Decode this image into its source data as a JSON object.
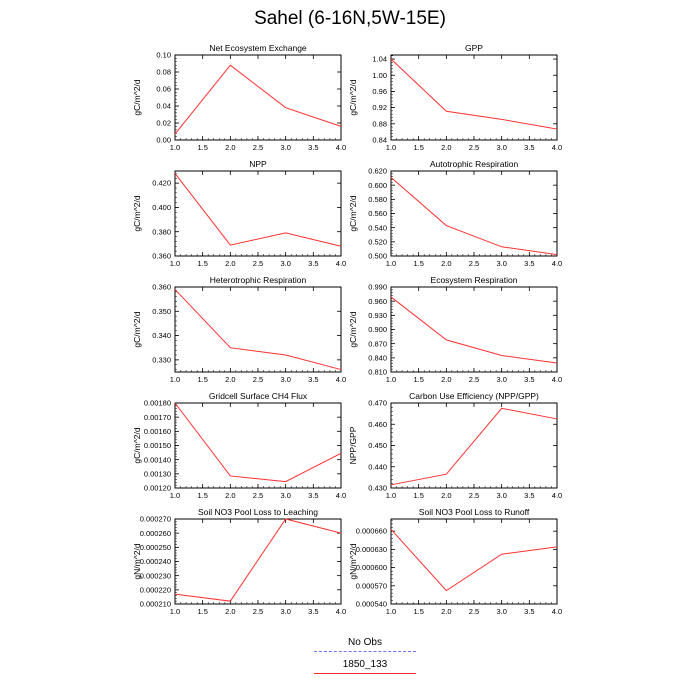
{
  "title": "Sahel (6-16N,5W-15E)",
  "legend": {
    "entries": [
      {
        "label": "No Obs",
        "color": "#7070ff",
        "style": "dashed"
      },
      {
        "label": "1850_133",
        "color": "#ff3030",
        "style": "solid"
      }
    ]
  },
  "chart_data": [
    {
      "type": "line",
      "title": "Net Ecosystem Exchange",
      "ylabel": "gC/m^2/d",
      "x": [
        1,
        2,
        3,
        4
      ],
      "series": [
        {
          "values": [
            0.007,
            0.088,
            0.038,
            0.016
          ],
          "color": "#ff3030"
        }
      ],
      "xlim": [
        1,
        4
      ],
      "ylim": [
        0,
        0.1
      ],
      "xticks": [
        "1.0",
        "1.5",
        "2.0",
        "2.5",
        "3.0",
        "3.5",
        "4.0"
      ],
      "yticks": [
        "0.00",
        "0.02",
        "0.04",
        "0.06",
        "0.08",
        "0.10"
      ],
      "grid": false
    },
    {
      "type": "line",
      "title": "GPP",
      "ylabel": "gC/m^2/d",
      "x": [
        1,
        2,
        3,
        4
      ],
      "series": [
        {
          "values": [
            1.04,
            0.911,
            0.891,
            0.867
          ],
          "color": "#ff3030"
        }
      ],
      "xlim": [
        1,
        4
      ],
      "ylim": [
        0.84,
        1.05
      ],
      "xticks": [
        "1.0",
        "1.5",
        "2.0",
        "2.5",
        "3.0",
        "3.5",
        "4.0"
      ],
      "yticks": [
        "0.84",
        "0.88",
        "0.92",
        "0.96",
        "1.00",
        "1.04"
      ],
      "grid": false
    },
    {
      "type": "line",
      "title": "NPP",
      "ylabel": "gC/m^2/d",
      "x": [
        1,
        2,
        3,
        4
      ],
      "series": [
        {
          "values": [
            0.428,
            0.369,
            0.379,
            0.368
          ],
          "color": "#ff3030"
        }
      ],
      "xlim": [
        1,
        4
      ],
      "ylim": [
        0.36,
        0.43
      ],
      "xticks": [
        "1.0",
        "1.5",
        "2.0",
        "2.5",
        "3.0",
        "3.5",
        "4.0"
      ],
      "yticks": [
        "0.360",
        "0.380",
        "0.400",
        "0.420"
      ],
      "grid": false
    },
    {
      "type": "line",
      "title": "Autotrophic Respiration",
      "ylabel": "gC/m^2/d",
      "x": [
        1,
        2,
        3,
        4
      ],
      "series": [
        {
          "values": [
            0.611,
            0.543,
            0.513,
            0.502
          ],
          "color": "#ff3030"
        }
      ],
      "xlim": [
        1,
        4
      ],
      "ylim": [
        0.5,
        0.62
      ],
      "xticks": [
        "1.0",
        "1.5",
        "2.0",
        "2.5",
        "3.0",
        "3.5",
        "4.0"
      ],
      "yticks": [
        "0.500",
        "0.520",
        "0.540",
        "0.560",
        "0.580",
        "0.600",
        "0.620"
      ],
      "grid": false
    },
    {
      "type": "line",
      "title": "Heterotrophic Respiration",
      "ylabel": "gC/m^2/d",
      "x": [
        1,
        2,
        3,
        4
      ],
      "series": [
        {
          "values": [
            0.359,
            0.335,
            0.332,
            0.326
          ],
          "color": "#ff3030"
        }
      ],
      "xlim": [
        1,
        4
      ],
      "ylim": [
        0.325,
        0.36
      ],
      "xticks": [
        "1.0",
        "1.5",
        "2.0",
        "2.5",
        "3.0",
        "3.5",
        "4.0"
      ],
      "yticks": [
        "0.330",
        "0.340",
        "0.350",
        "0.360"
      ],
      "grid": false
    },
    {
      "type": "line",
      "title": "Ecosystem Respiration",
      "ylabel": "gC/m^2/d",
      "x": [
        1,
        2,
        3,
        4
      ],
      "series": [
        {
          "values": [
            0.969,
            0.878,
            0.845,
            0.829
          ],
          "color": "#ff3030"
        }
      ],
      "xlim": [
        1,
        4
      ],
      "ylim": [
        0.81,
        0.99
      ],
      "xticks": [
        "1.0",
        "1.5",
        "2.0",
        "2.5",
        "3.0",
        "3.5",
        "4.0"
      ],
      "yticks": [
        "0.810",
        "0.840",
        "0.870",
        "0.900",
        "0.930",
        "0.960",
        "0.990"
      ],
      "grid": false
    },
    {
      "type": "line",
      "title": "Gridcell Surface CH4 Flux",
      "ylabel": "gC/m^2/d",
      "x": [
        1,
        2,
        3,
        4
      ],
      "series": [
        {
          "values": [
            0.0018,
            0.001285,
            0.001245,
            0.001445
          ],
          "color": "#ff3030"
        }
      ],
      "xlim": [
        1,
        4
      ],
      "ylim": [
        0.0012,
        0.0018
      ],
      "xticks": [
        "1.0",
        "1.5",
        "2.0",
        "2.5",
        "3.0",
        "3.5",
        "4.0"
      ],
      "yticks": [
        "0.00120",
        "0.00130",
        "0.00140",
        "0.00150",
        "0.00160",
        "0.00170",
        "0.00180"
      ],
      "grid": false
    },
    {
      "type": "line",
      "title": "Carbon Use Efficiency (NPP/GPP)",
      "ylabel": "NPP/GPP",
      "x": [
        1,
        2,
        3,
        4
      ],
      "series": [
        {
          "values": [
            0.4315,
            0.4365,
            0.4675,
            0.4625
          ],
          "color": "#ff3030"
        }
      ],
      "xlim": [
        1,
        4
      ],
      "ylim": [
        0.43,
        0.47
      ],
      "xticks": [
        "1.0",
        "1.5",
        "2.0",
        "2.5",
        "3.0",
        "3.5",
        "4.0"
      ],
      "yticks": [
        "0.430",
        "0.440",
        "0.450",
        "0.460",
        "0.470"
      ],
      "grid": false
    },
    {
      "type": "line",
      "title": "Soil NO3 Pool Loss to Leaching",
      "ylabel": "gN/m^2/d",
      "x": [
        1,
        2,
        3,
        4
      ],
      "series": [
        {
          "values": [
            0.000217,
            0.000212,
            0.00027,
            0.00026
          ],
          "color": "#ff3030"
        }
      ],
      "xlim": [
        1,
        4
      ],
      "ylim": [
        0.00021,
        0.00027
      ],
      "xticks": [
        "1.0",
        "1.5",
        "2.0",
        "2.5",
        "3.0",
        "3.5",
        "4.0"
      ],
      "yticks": [
        "0.000210",
        "0.000220",
        "0.000230",
        "0.000240",
        "0.000250",
        "0.000260",
        "0.000270"
      ],
      "grid": false
    },
    {
      "type": "line",
      "title": "Soil NO3 Pool Loss to Runoff",
      "ylabel": "gN/m^2/d",
      "x": [
        1,
        2,
        3,
        4
      ],
      "series": [
        {
          "values": [
            0.000663,
            0.000562,
            0.000622,
            0.000634
          ],
          "color": "#ff3030"
        }
      ],
      "xlim": [
        1,
        4
      ],
      "ylim": [
        0.00054,
        0.00068
      ],
      "xticks": [
        "1.0",
        "1.5",
        "2.0",
        "2.5",
        "3.0",
        "3.5",
        "4.0"
      ],
      "yticks": [
        "0.000540",
        "0.000570",
        "0.000600",
        "0.000630",
        "0.000660"
      ],
      "grid": false
    }
  ]
}
